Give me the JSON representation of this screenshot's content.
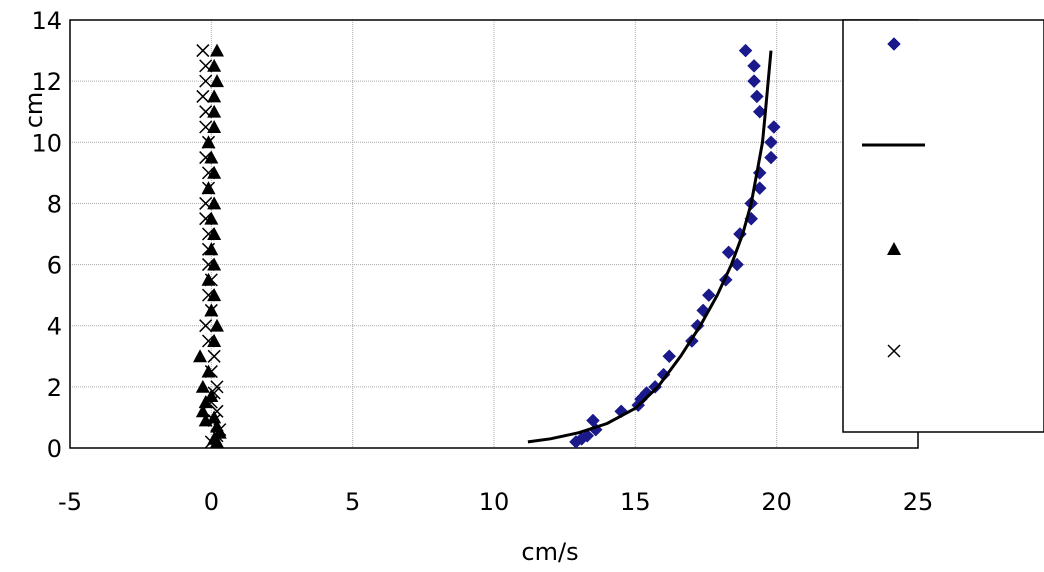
{
  "chart_data": {
    "type": "scatter",
    "xlabel": "cm/s",
    "ylabel": "cm",
    "xlim": [
      -5,
      25
    ],
    "ylim": [
      0,
      14
    ],
    "x_ticks": [
      "-5",
      "0",
      "5",
      "10",
      "15",
      "20",
      "25"
    ],
    "y_ticks": [
      "0",
      "2",
      "4",
      "6",
      "8",
      "10",
      "12",
      "14"
    ],
    "grid": true,
    "legend": "right",
    "series": [
      {
        "marker": "diamond",
        "color": "#1a1a8c",
        "points": [
          [
            12.9,
            0.2
          ],
          [
            13.1,
            0.3
          ],
          [
            13.3,
            0.4
          ],
          [
            13.5,
            0.9
          ],
          [
            13.6,
            0.6
          ],
          [
            14.5,
            1.2
          ],
          [
            15.1,
            1.4
          ],
          [
            15.2,
            1.6
          ],
          [
            15.4,
            1.8
          ],
          [
            15.7,
            2.0
          ],
          [
            16.0,
            2.4
          ],
          [
            16.2,
            3.0
          ],
          [
            17.0,
            3.5
          ],
          [
            17.2,
            4.0
          ],
          [
            17.4,
            4.5
          ],
          [
            17.6,
            5.0
          ],
          [
            18.2,
            5.5
          ],
          [
            18.3,
            6.4
          ],
          [
            18.6,
            6.0
          ],
          [
            18.7,
            7.0
          ],
          [
            19.1,
            7.5
          ],
          [
            19.1,
            8.0
          ],
          [
            19.4,
            8.5
          ],
          [
            19.4,
            9.0
          ],
          [
            19.8,
            9.5
          ],
          [
            19.8,
            10.0
          ],
          [
            19.9,
            10.5
          ],
          [
            19.4,
            11.0
          ],
          [
            19.3,
            11.5
          ],
          [
            19.2,
            12.0
          ],
          [
            19.2,
            12.5
          ],
          [
            18.9,
            13.0
          ]
        ]
      },
      {
        "marker": "line",
        "color": "#000000",
        "points": [
          [
            11.2,
            0.2
          ],
          [
            12.0,
            0.3
          ],
          [
            13.0,
            0.5
          ],
          [
            14.0,
            0.8
          ],
          [
            15.0,
            1.3
          ],
          [
            15.8,
            2.0
          ],
          [
            16.6,
            3.0
          ],
          [
            17.3,
            4.0
          ],
          [
            17.9,
            5.0
          ],
          [
            18.4,
            6.0
          ],
          [
            18.8,
            7.0
          ],
          [
            19.1,
            8.0
          ],
          [
            19.3,
            9.0
          ],
          [
            19.5,
            10.0
          ],
          [
            19.6,
            11.0
          ],
          [
            19.7,
            12.0
          ],
          [
            19.8,
            13.0
          ]
        ]
      },
      {
        "marker": "triangle",
        "color": "#000000",
        "points": [
          [
            0.2,
            0.2
          ],
          [
            0.1,
            0.3
          ],
          [
            0.3,
            0.5
          ],
          [
            0.2,
            0.7
          ],
          [
            -0.2,
            0.9
          ],
          [
            0.1,
            1.0
          ],
          [
            -0.3,
            1.2
          ],
          [
            -0.2,
            1.5
          ],
          [
            0.0,
            1.7
          ],
          [
            -0.3,
            2.0
          ],
          [
            -0.1,
            2.5
          ],
          [
            -0.4,
            3.0
          ],
          [
            0.1,
            3.5
          ],
          [
            0.2,
            4.0
          ],
          [
            0.0,
            4.5
          ],
          [
            0.1,
            5.0
          ],
          [
            -0.1,
            5.5
          ],
          [
            0.1,
            6.0
          ],
          [
            0.0,
            6.5
          ],
          [
            0.1,
            7.0
          ],
          [
            0.0,
            7.5
          ],
          [
            0.1,
            8.0
          ],
          [
            -0.1,
            8.5
          ],
          [
            0.1,
            9.0
          ],
          [
            0.0,
            9.5
          ],
          [
            -0.1,
            10.0
          ],
          [
            0.1,
            10.5
          ],
          [
            0.1,
            11.0
          ],
          [
            0.1,
            11.5
          ],
          [
            0.2,
            12.0
          ],
          [
            0.1,
            12.5
          ],
          [
            0.2,
            13.0
          ]
        ]
      },
      {
        "marker": "cross",
        "color": "#000000",
        "points": [
          [
            0.0,
            0.2
          ],
          [
            0.2,
            0.4
          ],
          [
            0.3,
            0.6
          ],
          [
            0.1,
            0.9
          ],
          [
            0.2,
            1.2
          ],
          [
            0.0,
            1.5
          ],
          [
            0.1,
            1.8
          ],
          [
            0.2,
            2.0
          ],
          [
            0.0,
            2.5
          ],
          [
            0.1,
            3.0
          ],
          [
            -0.1,
            3.5
          ],
          [
            -0.2,
            4.0
          ],
          [
            0.0,
            4.5
          ],
          [
            -0.1,
            5.0
          ],
          [
            0.0,
            5.5
          ],
          [
            -0.1,
            6.0
          ],
          [
            -0.1,
            6.5
          ],
          [
            -0.1,
            7.0
          ],
          [
            -0.2,
            7.5
          ],
          [
            -0.2,
            8.0
          ],
          [
            -0.1,
            8.5
          ],
          [
            -0.1,
            9.0
          ],
          [
            -0.2,
            9.5
          ],
          [
            -0.1,
            10.0
          ],
          [
            -0.2,
            10.5
          ],
          [
            -0.2,
            11.0
          ],
          [
            -0.3,
            11.5
          ],
          [
            -0.2,
            12.0
          ],
          [
            -0.2,
            12.5
          ],
          [
            -0.3,
            13.0
          ]
        ]
      }
    ]
  }
}
